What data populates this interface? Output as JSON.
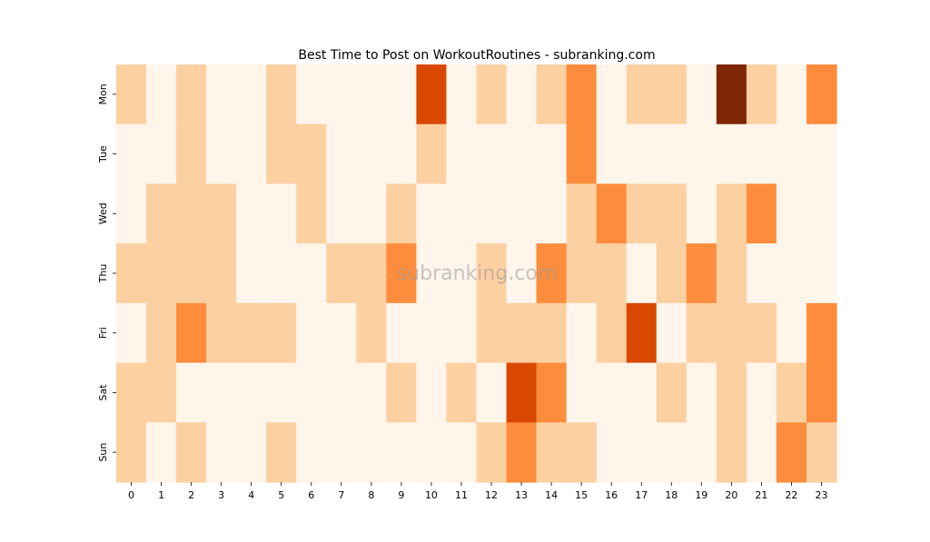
{
  "chart_data": {
    "type": "heatmap",
    "title": "Best Time to Post on WorkoutRoutines - subranking.com",
    "watermark": "subranking.com",
    "x_categories": [
      "0",
      "1",
      "2",
      "3",
      "4",
      "5",
      "6",
      "7",
      "8",
      "9",
      "10",
      "11",
      "12",
      "13",
      "14",
      "15",
      "16",
      "17",
      "18",
      "19",
      "20",
      "21",
      "22",
      "23"
    ],
    "y_categories": [
      "Mon",
      "Tue",
      "Wed",
      "Thu",
      "Fri",
      "Sat",
      "Sun"
    ],
    "xlabel": "",
    "ylabel": "",
    "value_range": [
      0,
      4
    ],
    "color_scale": [
      "#fff5eb",
      "#fdd0a2",
      "#fd8d3c",
      "#d94801",
      "#7f2704"
    ],
    "values": [
      [
        1,
        0,
        1,
        0,
        0,
        1,
        0,
        0,
        0,
        0,
        3,
        0,
        1,
        0,
        1,
        2,
        0,
        1,
        1,
        0,
        4,
        1,
        0,
        2
      ],
      [
        0,
        0,
        1,
        0,
        0,
        1,
        1,
        0,
        0,
        0,
        1,
        0,
        0,
        0,
        0,
        2,
        0,
        0,
        0,
        0,
        0,
        0,
        0,
        0
      ],
      [
        0,
        1,
        1,
        1,
        0,
        0,
        1,
        0,
        0,
        1,
        0,
        0,
        0,
        0,
        0,
        1,
        2,
        1,
        1,
        0,
        1,
        2,
        0,
        0
      ],
      [
        1,
        1,
        1,
        1,
        0,
        0,
        0,
        1,
        1,
        2,
        0,
        0,
        1,
        0,
        2,
        1,
        1,
        0,
        1,
        2,
        1,
        0,
        0,
        0
      ],
      [
        0,
        1,
        2,
        1,
        1,
        1,
        0,
        0,
        1,
        0,
        0,
        0,
        1,
        1,
        1,
        0,
        1,
        3,
        0,
        1,
        1,
        1,
        0,
        2
      ],
      [
        1,
        1,
        0,
        0,
        0,
        0,
        0,
        0,
        0,
        1,
        0,
        1,
        0,
        3,
        2,
        0,
        0,
        0,
        1,
        0,
        1,
        0,
        1,
        2
      ],
      [
        1,
        0,
        1,
        0,
        0,
        1,
        0,
        0,
        0,
        0,
        0,
        0,
        1,
        2,
        1,
        1,
        0,
        0,
        0,
        0,
        1,
        0,
        2,
        1
      ]
    ]
  }
}
